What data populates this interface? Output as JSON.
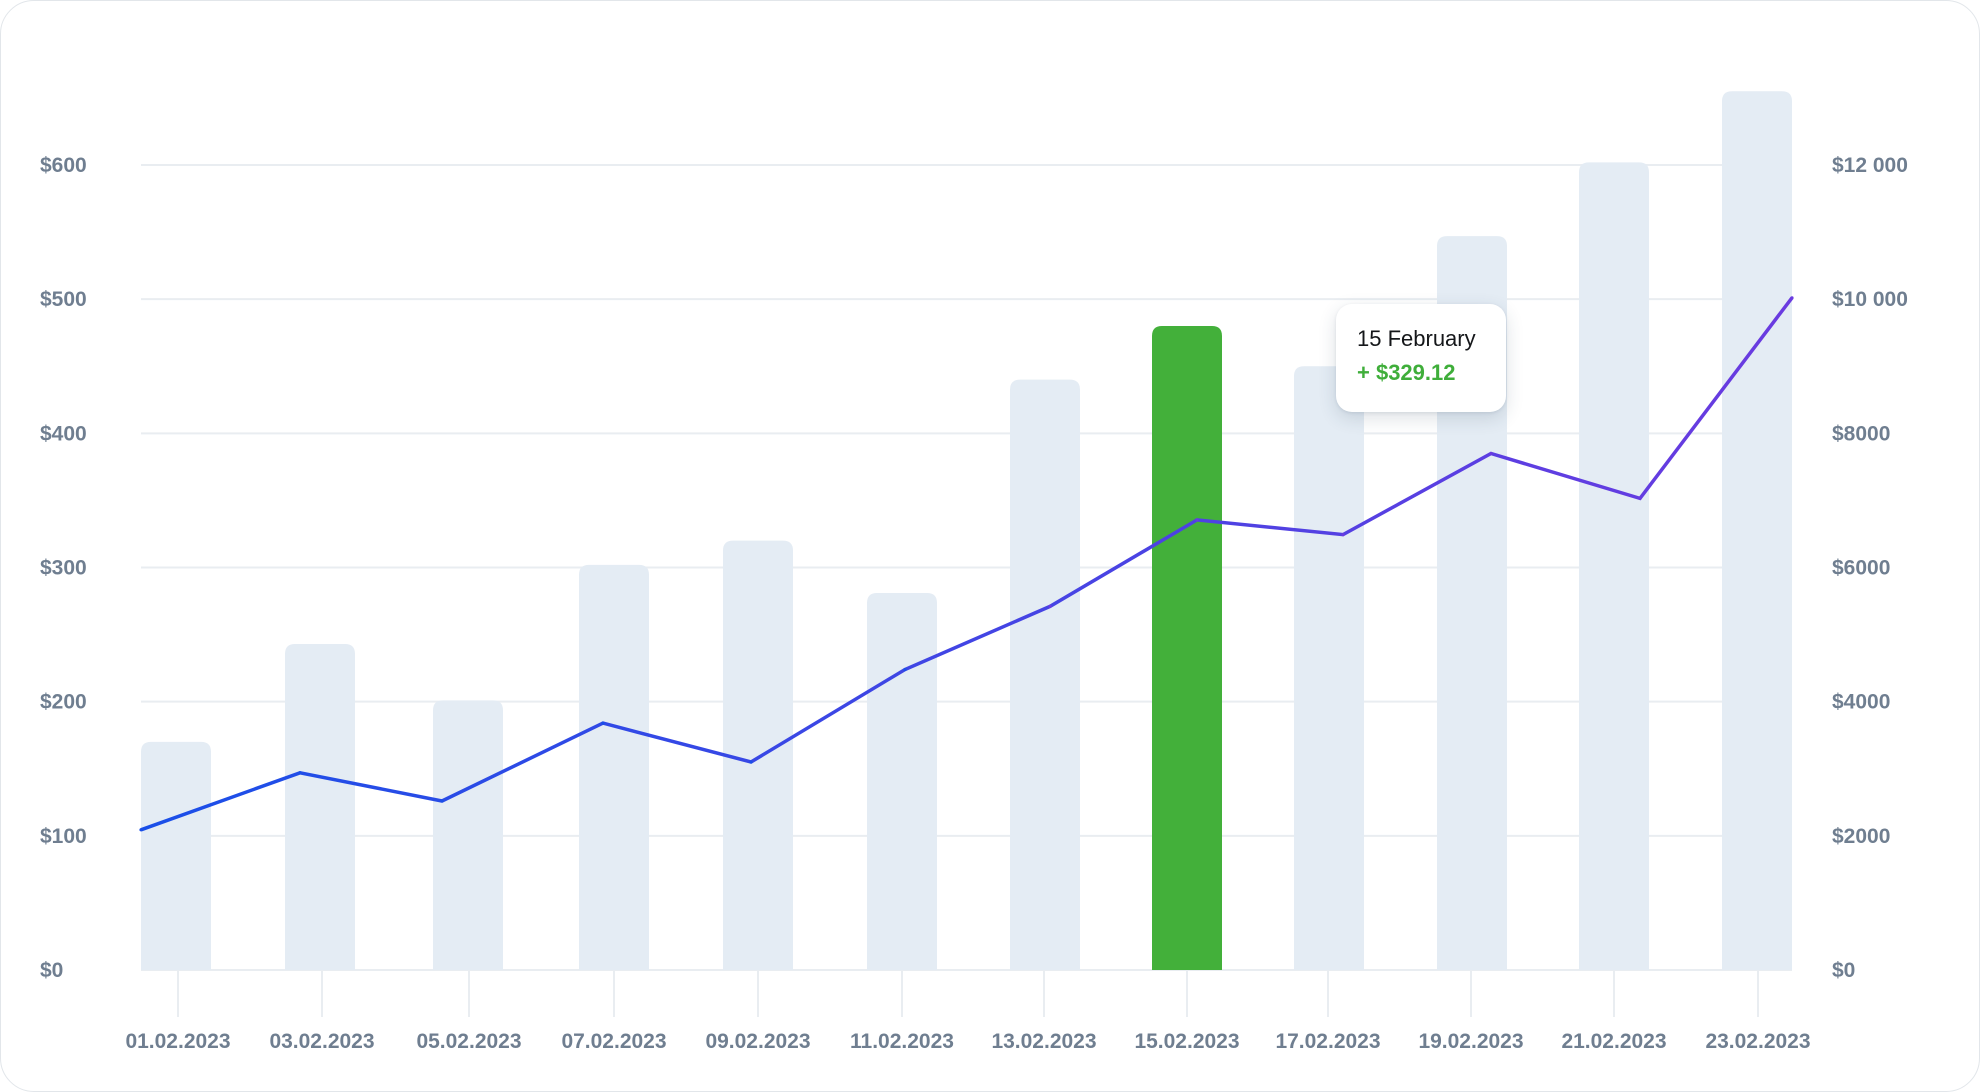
{
  "chart_data": {
    "type": "bar",
    "categories": [
      "01.02.2023",
      "03.02.2023",
      "05.02.2023",
      "07.02.2023",
      "09.02.2023",
      "11.02.2023",
      "13.02.2023",
      "15.02.2023",
      "17.02.2023",
      "19.02.2023",
      "21.02.2023",
      "23.02.2023"
    ],
    "bar_values": [
      170,
      243,
      201,
      302,
      320,
      281,
      440,
      480,
      450,
      547,
      602,
      655
    ],
    "line_values": [
      2090,
      2940,
      2520,
      3680,
      3100,
      4480,
      5420,
      6710,
      6490,
      7700,
      7030,
      10020
    ],
    "highlighted_index": 7,
    "left_axis": {
      "ticks": [
        "$0",
        "$100",
        "$200",
        "$300",
        "$400",
        "$500",
        "$600"
      ],
      "min": 0,
      "max": 600,
      "step": 100
    },
    "right_axis": {
      "ticks": [
        "$0",
        "$2000",
        "$4000",
        "$6000",
        "$8000",
        "$10 000",
        "$12 000"
      ],
      "min": 0,
      "max": 12000,
      "step": 2000
    },
    "grid": true,
    "colors": {
      "bar": "#e4ecf4",
      "bar_highlight": "#43b03a",
      "line_start": "#1a4fe8",
      "line_end": "#6a3be0",
      "grid": "#e9edf1",
      "tick_text": "#6f7e90"
    },
    "tooltip": {
      "date": "15 February",
      "value": "+ $329.12"
    }
  }
}
